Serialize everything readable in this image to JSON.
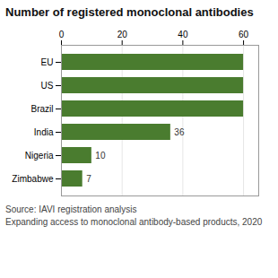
{
  "chart_data": {
    "type": "bar",
    "orientation": "horizontal",
    "title": "Number of registered monoclonal antibodies",
    "categories": [
      "EU",
      "US",
      "Brazil",
      "India",
      "Nigeria",
      "Zimbabwe"
    ],
    "values": [
      60,
      60,
      60,
      36,
      10,
      7
    ],
    "data_labels": true,
    "value_labels": [
      null,
      null,
      null,
      "36",
      "10",
      "7"
    ],
    "color": "#4a7c2f",
    "xlim": [
      0,
      65
    ],
    "xticks": [
      0,
      20,
      40,
      60
    ],
    "grid": true,
    "annotations": [
      "Source: IAVI registration analysis",
      "Expanding access to monoclonal antibody-based products, 2020"
    ]
  }
}
